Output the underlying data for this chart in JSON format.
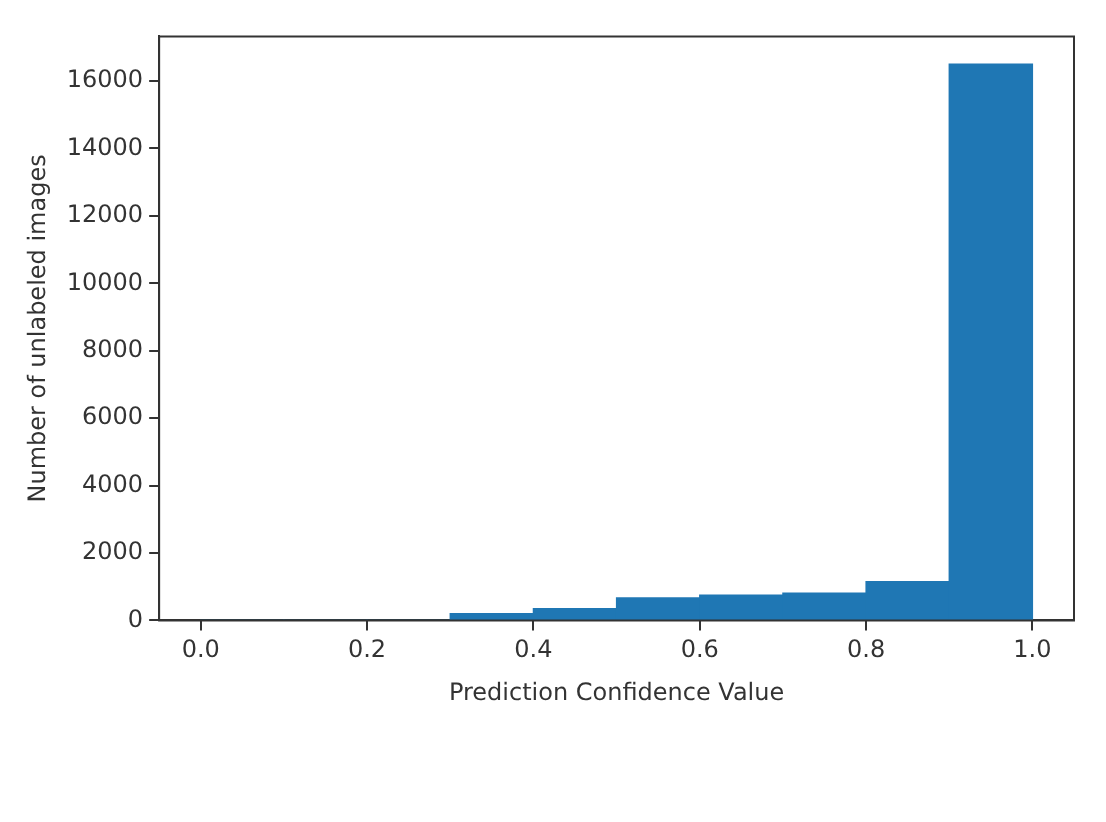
{
  "chart_data": {
    "type": "histogram",
    "xlabel": "Prediction Confidence Value",
    "ylabel": "Number of unlabeled images",
    "bins": [
      0,
      0.1,
      0.2,
      0.3,
      0.4,
      0.5,
      0.6,
      0.7,
      0.8,
      0.9,
      1.0
    ],
    "values": [
      0,
      0,
      0,
      200,
      350,
      670,
      750,
      810,
      1150,
      16500
    ],
    "color": "#1f77b4",
    "xlim": [
      -0.05,
      1.05
    ],
    "xticks": [
      {
        "value": 0,
        "label": "0.0"
      },
      0.2,
      0.4,
      0.6,
      0.8,
      {
        "value": 1,
        "label": "1.0"
      }
    ],
    "ylim": [
      0,
      17325
    ],
    "yticks": [
      0,
      2000,
      4000,
      6000,
      8000,
      10000,
      12000,
      14000,
      16000
    ],
    "grid": false,
    "legend": false
  }
}
